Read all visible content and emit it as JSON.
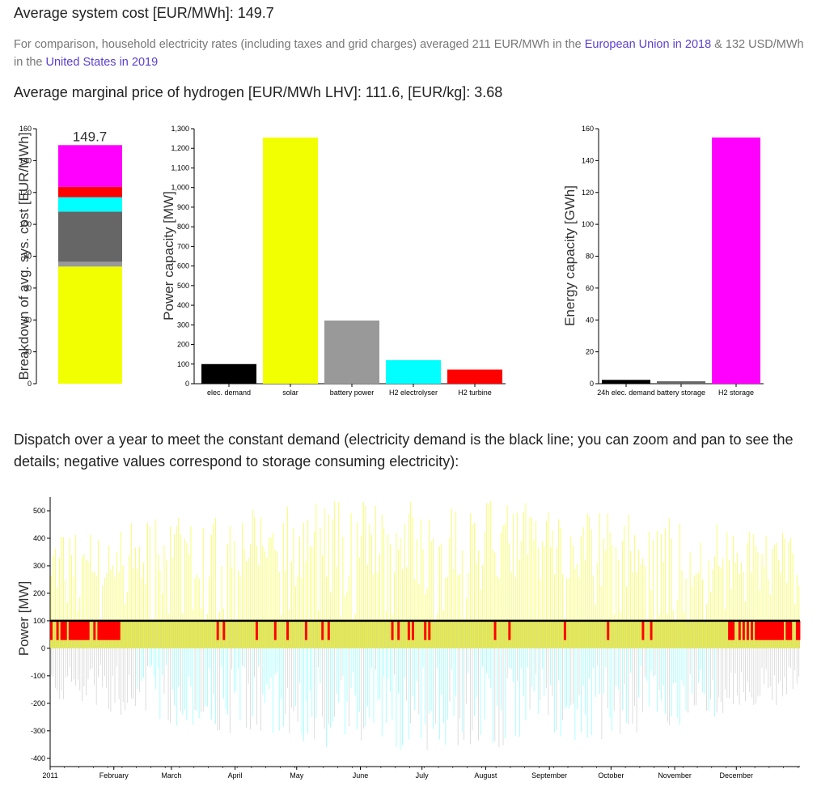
{
  "cost_heading": "Average system cost [EUR/MWh]: 149.7",
  "comparison": {
    "t1": "For comparison, household electricity rates (including taxes and grid charges) averaged 211 EUR/MWh in the ",
    "link1": "European Union in 2018",
    "t2": " & 132 USD/MWh in the ",
    "link2": "United States in 2019"
  },
  "h2_heading": "Average marginal price of hydrogen [EUR/MWh LHV]: 111.6, [EUR/kg]: 3.68",
  "dispatch_heading": "Dispatch over a year to meet the constant demand (electricity demand is the black line; you can zoom and pan to see the details; negative values correspond to storage consuming electricity):",
  "colors": {
    "solar": "#f2ff00",
    "battery_power": "#999999",
    "battery_energy": "#666666",
    "h2_electrolyser": "#00ffff",
    "h2_turbine": "#ff0000",
    "h2_storage": "#ff00ff",
    "demand": "#000000"
  },
  "chart_data": [
    {
      "type": "bar",
      "stacked": true,
      "ylabel": "Breakdown of avg. sys. cost [EUR/MWh]",
      "ylim": [
        0,
        160
      ],
      "yticks": [
        "0",
        "20",
        "40",
        "60",
        "80",
        "100",
        "120",
        "140",
        "160"
      ],
      "total_label": "149.7",
      "segments": [
        {
          "color": "#f2ff00",
          "value": 73.5
        },
        {
          "color": "#999999",
          "value": 3.0
        },
        {
          "color": "#666666",
          "value": 31.5
        },
        {
          "color": "#00ffff",
          "value": 9.0
        },
        {
          "color": "#ff0000",
          "value": 6.5
        },
        {
          "color": "#ff00ff",
          "value": 26.2
        }
      ]
    },
    {
      "type": "bar",
      "ylabel": "Power capacity [MW]",
      "ylim": [
        0,
        1300
      ],
      "yticks": [
        "0",
        "100",
        "200",
        "300",
        "400",
        "500",
        "600",
        "700",
        "800",
        "900",
        "1,000",
        "1,100",
        "1,200",
        "1,300"
      ],
      "categories": [
        "elec. demand",
        "solar",
        "battery power",
        "H2 electrolyser",
        "H2 turbine"
      ],
      "values": [
        100,
        1255,
        322,
        120,
        72
      ],
      "colors": [
        "#000000",
        "#f2ff00",
        "#999999",
        "#00ffff",
        "#ff0000"
      ]
    },
    {
      "type": "bar",
      "ylabel": "Energy capacity [GWh]",
      "ylim": [
        0,
        160
      ],
      "yticks": [
        "0",
        "20",
        "40",
        "60",
        "80",
        "100",
        "120",
        "140",
        "160"
      ],
      "categories": [
        "24h elec. demand",
        "battery storage",
        "H2 storage"
      ],
      "values": [
        2.4,
        1.5,
        154.5
      ],
      "colors": [
        "#000000",
        "#666666",
        "#ff00ff"
      ]
    },
    {
      "type": "area",
      "ylabel": "Power [MW]",
      "ylim": [
        -430,
        550
      ],
      "yticks": [
        "-400",
        "-300",
        "-200",
        "-100",
        "0",
        "100",
        "200",
        "300",
        "400",
        "500"
      ],
      "xticks": [
        "2011",
        "February",
        "March",
        "April",
        "May",
        "June",
        "July",
        "August",
        "September",
        "October",
        "November",
        "December"
      ],
      "demand": 100,
      "series": [
        {
          "color": "#f2ff00",
          "description": "solar",
          "peak_range": [
            0,
            545
          ]
        },
        {
          "color": "#ff0000",
          "description": "H2 turbine",
          "typical": [
            0,
            100
          ]
        },
        {
          "color": "#999999",
          "description": "battery power",
          "typical": [
            -300,
            100
          ]
        },
        {
          "color": "#00ffff",
          "description": "H2 electrolyser",
          "typical": [
            -430,
            0
          ]
        }
      ]
    }
  ]
}
